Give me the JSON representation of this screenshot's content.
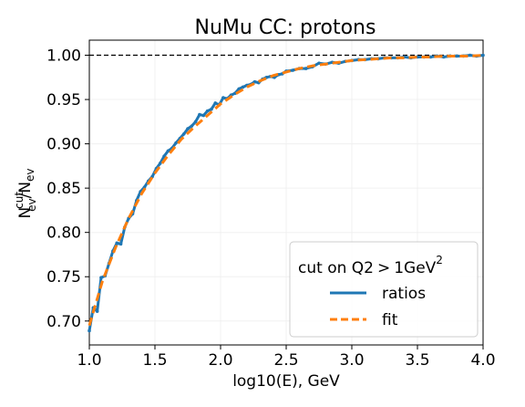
{
  "chart_data": {
    "type": "line",
    "title": "NuMu CC: protons",
    "xlabel": "log10(E), GeV",
    "ylabel": {
      "base": "N",
      "sup": "cut",
      "sub": "ev",
      "slash": "/",
      "base2": "N",
      "sub2": "ev"
    },
    "xlim": [
      1.0,
      4.0
    ],
    "ylim": [
      0.673,
      1.017
    ],
    "xticks": [
      "1.0",
      "1.5",
      "2.0",
      "2.5",
      "3.0",
      "3.5",
      "4.0"
    ],
    "yticks": [
      "0.70",
      "0.75",
      "0.80",
      "0.85",
      "0.90",
      "0.95",
      "1.00"
    ],
    "reference_line": {
      "y": 1.0,
      "style": "dashed",
      "color": "#000000"
    },
    "legend": {
      "title": {
        "base": "cut on Q2",
        "op": ">",
        "value": "1GeV",
        "sup": "2"
      },
      "placement": "lower-right"
    },
    "series": [
      {
        "name": "ratios",
        "color": "#1f77b4",
        "marker": "dot",
        "x": [
          1.0,
          1.03,
          1.06,
          1.09,
          1.12,
          1.15,
          1.18,
          1.21,
          1.24,
          1.27,
          1.3,
          1.33,
          1.36,
          1.39,
          1.42,
          1.45,
          1.48,
          1.51,
          1.54,
          1.57,
          1.6,
          1.63,
          1.66,
          1.69,
          1.72,
          1.75,
          1.78,
          1.81,
          1.84,
          1.87,
          1.9,
          1.93,
          1.96,
          1.99,
          2.02,
          2.05,
          2.08,
          2.11,
          2.14,
          2.17,
          2.2,
          2.23,
          2.26,
          2.29,
          2.32,
          2.35,
          2.38,
          2.41,
          2.44,
          2.47,
          2.5,
          2.55,
          2.6,
          2.65,
          2.7,
          2.75,
          2.8,
          2.85,
          2.9,
          2.95,
          3.0,
          3.05,
          3.1,
          3.15,
          3.2,
          3.25,
          3.3,
          3.35,
          3.4,
          3.45,
          3.5,
          3.55,
          3.6,
          3.65,
          3.7,
          3.75,
          3.8,
          3.85,
          3.9,
          3.95,
          4.0
        ],
        "y": [
          0.689,
          0.715,
          0.711,
          0.749,
          0.751,
          0.765,
          0.779,
          0.788,
          0.787,
          0.806,
          0.816,
          0.821,
          0.836,
          0.846,
          0.851,
          0.858,
          0.863,
          0.872,
          0.878,
          0.886,
          0.892,
          0.895,
          0.901,
          0.906,
          0.911,
          0.917,
          0.92,
          0.925,
          0.933,
          0.932,
          0.937,
          0.939,
          0.946,
          0.944,
          0.952,
          0.951,
          0.955,
          0.957,
          0.962,
          0.964,
          0.966,
          0.967,
          0.97,
          0.969,
          0.973,
          0.975,
          0.976,
          0.975,
          0.978,
          0.979,
          0.982,
          0.983,
          0.985,
          0.985,
          0.987,
          0.991,
          0.99,
          0.992,
          0.991,
          0.993,
          0.994,
          0.995,
          0.995,
          0.996,
          0.996,
          0.997,
          0.997,
          0.997,
          0.998,
          0.997,
          0.998,
          0.998,
          0.998,
          0.999,
          0.998,
          0.999,
          0.999,
          0.999,
          1.0,
          0.999,
          1.0
        ]
      },
      {
        "name": "fit",
        "color": "#ff7f0e",
        "style": "dashed",
        "x": [
          1.0,
          1.1,
          1.2,
          1.3,
          1.4,
          1.5,
          1.6,
          1.7,
          1.8,
          1.9,
          2.0,
          2.1,
          2.2,
          2.3,
          2.4,
          2.5,
          2.6,
          2.7,
          2.8,
          2.9,
          3.0,
          3.1,
          3.2,
          3.3,
          3.4,
          3.5,
          3.6,
          3.7,
          3.8,
          3.9,
          4.0
        ],
        "y": [
          0.695,
          0.745,
          0.783,
          0.816,
          0.844,
          0.867,
          0.887,
          0.905,
          0.919,
          0.932,
          0.945,
          0.955,
          0.964,
          0.971,
          0.977,
          0.981,
          0.985,
          0.988,
          0.99,
          0.992,
          0.994,
          0.995,
          0.996,
          0.997,
          0.997,
          0.998,
          0.998,
          0.999,
          0.999,
          0.999,
          1.0
        ]
      }
    ]
  }
}
